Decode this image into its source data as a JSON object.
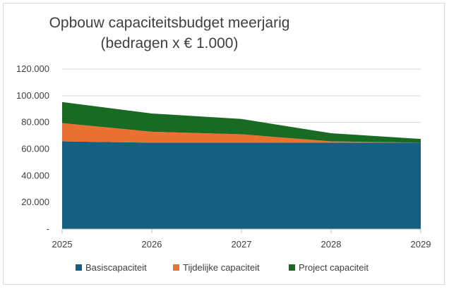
{
  "chart_data": {
    "type": "area",
    "stacked": true,
    "title": [
      "Opbouw capaciteitsbudget meerjarig",
      "(bedragen x € 1.000)"
    ],
    "categories": [
      "2025",
      "2026",
      "2027",
      "2028",
      "2029"
    ],
    "series": [
      {
        "name": "Basiscapaciteit",
        "color": "#156082",
        "values": [
          65800,
          64800,
          64800,
          64800,
          64800
        ]
      },
      {
        "name": "Tijdelijke capaciteit",
        "color": "#e97132",
        "values": [
          13700,
          8200,
          6300,
          1000,
          0
        ]
      },
      {
        "name": "Project capaciteit",
        "color": "#196b24",
        "values": [
          15800,
          13700,
          11500,
          6100,
          2800
        ]
      }
    ],
    "yticks": [
      "-",
      "20.000",
      "40.000",
      "60.000",
      "80.000",
      "100.000",
      "120.000"
    ],
    "ylim": [
      0,
      120000
    ],
    "grid": true,
    "legend": "bottom"
  }
}
